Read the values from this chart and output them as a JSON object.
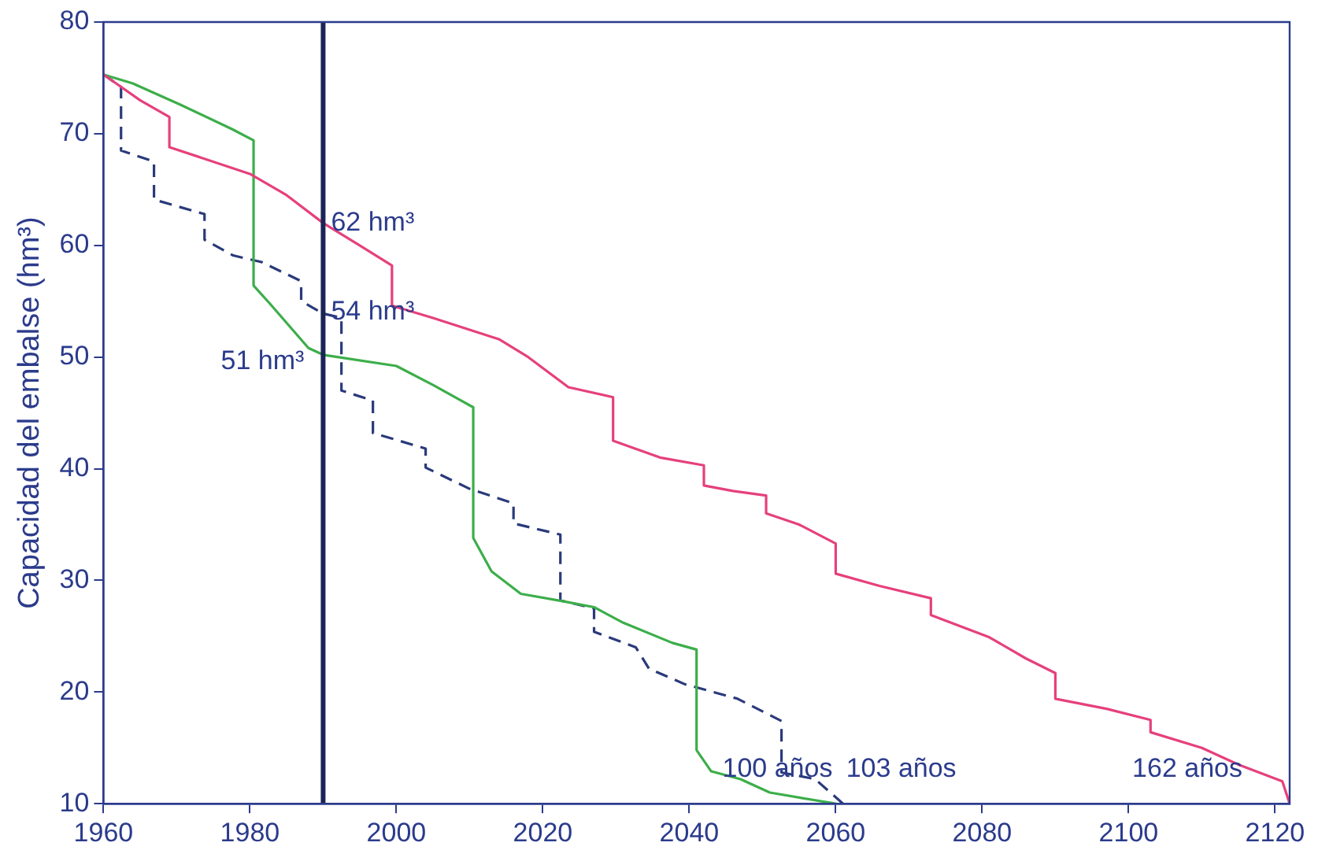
{
  "chart_data": {
    "type": "line",
    "ylabel": "Capacidad del embalse (hm³)",
    "xlim": [
      1960,
      2122
    ],
    "xticks": [
      1960,
      1980,
      2000,
      2020,
      2040,
      2060,
      2080,
      2100,
      2120
    ],
    "ylim": [
      10,
      80
    ],
    "yticks": [
      10,
      20,
      30,
      40,
      50,
      60,
      70,
      80
    ],
    "grid": false,
    "legend": false,
    "marker": "none",
    "series": [
      {
        "color": "#e6407c",
        "line_style": "solid",
        "x": [
          1960,
          1965,
          1969,
          1969,
          1980,
          1985,
          1990,
          1995,
          1999.4,
          1999.4,
          2005,
          2014,
          2018,
          2023.5,
          2029.6,
          2029.6,
          2036,
          2042,
          2042,
          2046,
          2050.5,
          2050.5,
          2055,
          2060,
          2060,
          2066,
          2073,
          2073,
          2081,
          2086,
          2090,
          2090,
          2097,
          2103,
          2103,
          2110,
          2115,
          2121,
          2122
        ],
        "values": [
          75.3,
          73,
          71.5,
          68.8,
          66.4,
          64.5,
          62,
          60,
          58.2,
          54.6,
          53.5,
          51.6,
          50,
          47.3,
          46.4,
          42.5,
          41,
          40.3,
          38.5,
          38,
          37.6,
          36,
          35,
          33.3,
          30.6,
          29.5,
          28.4,
          26.9,
          24.9,
          23,
          21.7,
          19.4,
          18.5,
          17.5,
          16.4,
          15,
          13.5,
          12,
          10
        ]
      },
      {
        "color": "#3cae4a",
        "line_style": "solid",
        "x": [
          1960,
          1964,
          1970.5,
          1977.6,
          1980.5,
          1980.5,
          1982.7,
          1988,
          1990,
          2000,
          2005,
          2010.5,
          2010.5,
          2013,
          2017,
          2023,
          2027,
          2031,
          2037.7,
          2041,
          2041,
          2043,
          2047,
          2051,
          2060
        ],
        "values": [
          75.3,
          74.5,
          72.6,
          70.4,
          69.4,
          56.4,
          54.8,
          50.8,
          50.2,
          49.2,
          47.5,
          45.5,
          33.8,
          30.8,
          28.8,
          28.1,
          27.6,
          26.2,
          24.4,
          23.8,
          14.8,
          12.9,
          12.2,
          11,
          10
        ]
      },
      {
        "color": "#2a3a7a",
        "line_style": "dashed",
        "x": [
          1960,
          1962.4,
          1962.4,
          1966.9,
          1966.9,
          1973.8,
          1973.8,
          1977.7,
          1981.6,
          1987,
          1987,
          1990,
          1992.5,
          1992.5,
          1996.8,
          1996.8,
          2004,
          2004,
          2010,
          2016,
          2016,
          2022.4,
          2022.4,
          2027,
          2027,
          2032.7,
          2034.5,
          2039.4,
          2046.6,
          2052.6,
          2052.6,
          2057.2,
          2061
        ],
        "values": [
          75.3,
          74.2,
          68.5,
          67.5,
          64.1,
          62.8,
          60.5,
          59.1,
          58.5,
          56.8,
          55,
          53.9,
          53.5,
          47,
          46.1,
          43.2,
          41.8,
          40.1,
          38.2,
          36.9,
          35.1,
          34.1,
          28.2,
          27.5,
          25.4,
          24,
          22.1,
          20.7,
          19.4,
          17.4,
          12.8,
          12.2,
          10
        ]
      }
    ],
    "ref_lines": [
      {
        "axis": "x",
        "value": 1990,
        "color": "#1c2456"
      }
    ],
    "annotations": [
      {
        "text": "62 hm³",
        "x": 1990,
        "y": 62
      },
      {
        "text": "54 hm³",
        "x": 1990,
        "y": 54
      },
      {
        "text": "51 hm³",
        "x": 1990,
        "y": 51
      },
      {
        "text": "100 años",
        "x": 2060,
        "y": 10
      },
      {
        "text": "103 años",
        "x": 2061,
        "y": 10
      },
      {
        "text": "162 años",
        "x": 2122,
        "y": 10
      }
    ]
  }
}
